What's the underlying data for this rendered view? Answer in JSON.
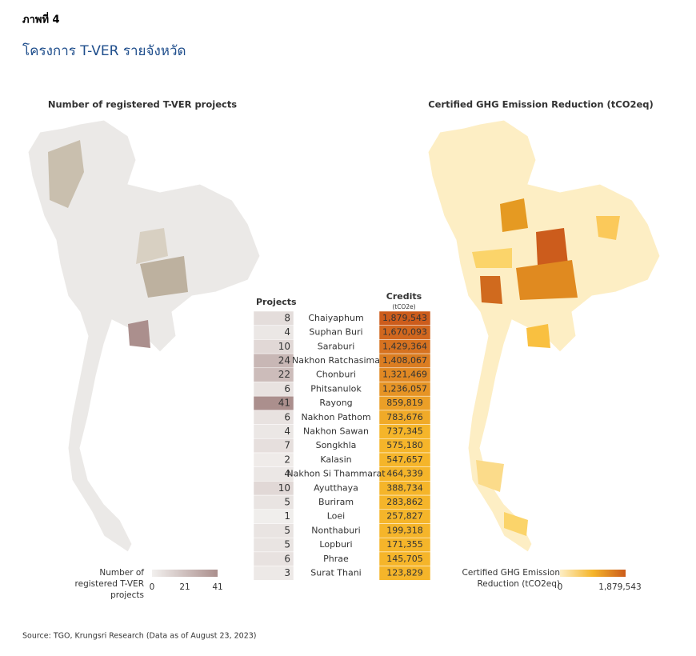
{
  "header": {
    "label": "ภาพที่ 4",
    "title": "โครงการ T-VER รายจังหวัด"
  },
  "maps": [
    {
      "title": "Number of registered T-VER projects",
      "legend": {
        "title": "Number of registered T-VER projects",
        "ticks": [
          0,
          21,
          41
        ]
      }
    },
    {
      "title": "Certified GHG Emission Reduction (tCO2eq)",
      "legend": {
        "title": "Certified GHG Emission Reduction (tCO2eq)",
        "ticks": [
          0,
          "1,879,543"
        ]
      }
    }
  ],
  "table": {
    "projects_header": "Projects",
    "credits_header": "Credits",
    "credits_unit": "(tCO2e)",
    "rows": [
      [
        8,
        "Chaiyaphum",
        "1,879,543"
      ],
      [
        4,
        "Suphan Buri",
        "1,670,093"
      ],
      [
        10,
        "Saraburi",
        "1,429,364"
      ],
      [
        24,
        "Nakhon Ratchasima",
        "1,408,067"
      ],
      [
        22,
        "Chonburi",
        "1,321,469"
      ],
      [
        6,
        "Phitsanulok",
        "1,236,057"
      ],
      [
        41,
        "Rayong",
        "859,819"
      ],
      [
        6,
        "Nakhon Pathom",
        "783,676"
      ],
      [
        4,
        "Nakhon Sawan",
        "737,345"
      ],
      [
        7,
        "Songkhla",
        "575,180"
      ],
      [
        2,
        "Kalasin",
        "547,657"
      ],
      [
        4,
        "Nakhon Si Thammarat",
        "464,339"
      ],
      [
        10,
        "Ayutthaya",
        "388,734"
      ],
      [
        5,
        "Buriram",
        "283,862"
      ],
      [
        1,
        "Loei",
        "257,827"
      ],
      [
        5,
        "Nonthaburi",
        "199,318"
      ],
      [
        5,
        "Lopburi",
        "171,355"
      ],
      [
        6,
        "Phrae",
        "145,705"
      ],
      [
        3,
        "Surat Thani",
        "123,829"
      ]
    ]
  },
  "source": "Source: TGO, Krungsri Research (Data as of August 23, 2023)"
}
